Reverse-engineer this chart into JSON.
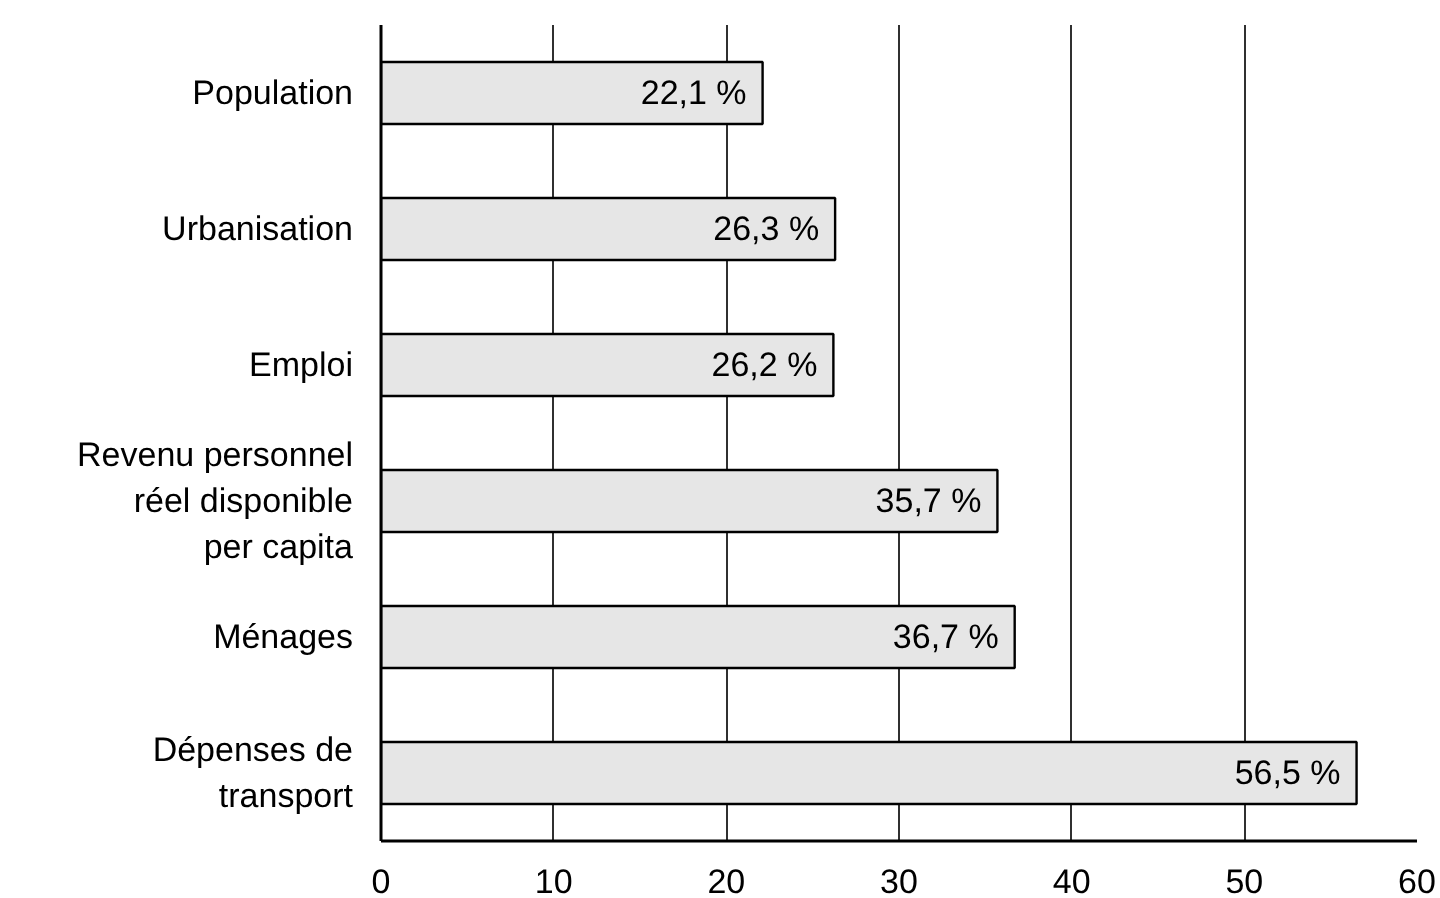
{
  "chart_data": {
    "type": "bar",
    "orientation": "horizontal",
    "categories": [
      "Population",
      "Urbanisation",
      "Emploi",
      "Revenu personnel réel disponible per capita",
      "Ménages",
      "Dépenses de transport"
    ],
    "values": [
      22.1,
      26.3,
      26.2,
      35.7,
      36.7,
      56.5
    ],
    "value_labels": [
      "22,1 %",
      "26,3 %",
      "26,2 %",
      "35,7 %",
      "36,7 %",
      "56,5 %"
    ],
    "color": "#e6e6e6",
    "xlim": [
      0,
      60
    ],
    "xticks": [
      0,
      10,
      20,
      30,
      40,
      50,
      60
    ],
    "grid": "x"
  }
}
